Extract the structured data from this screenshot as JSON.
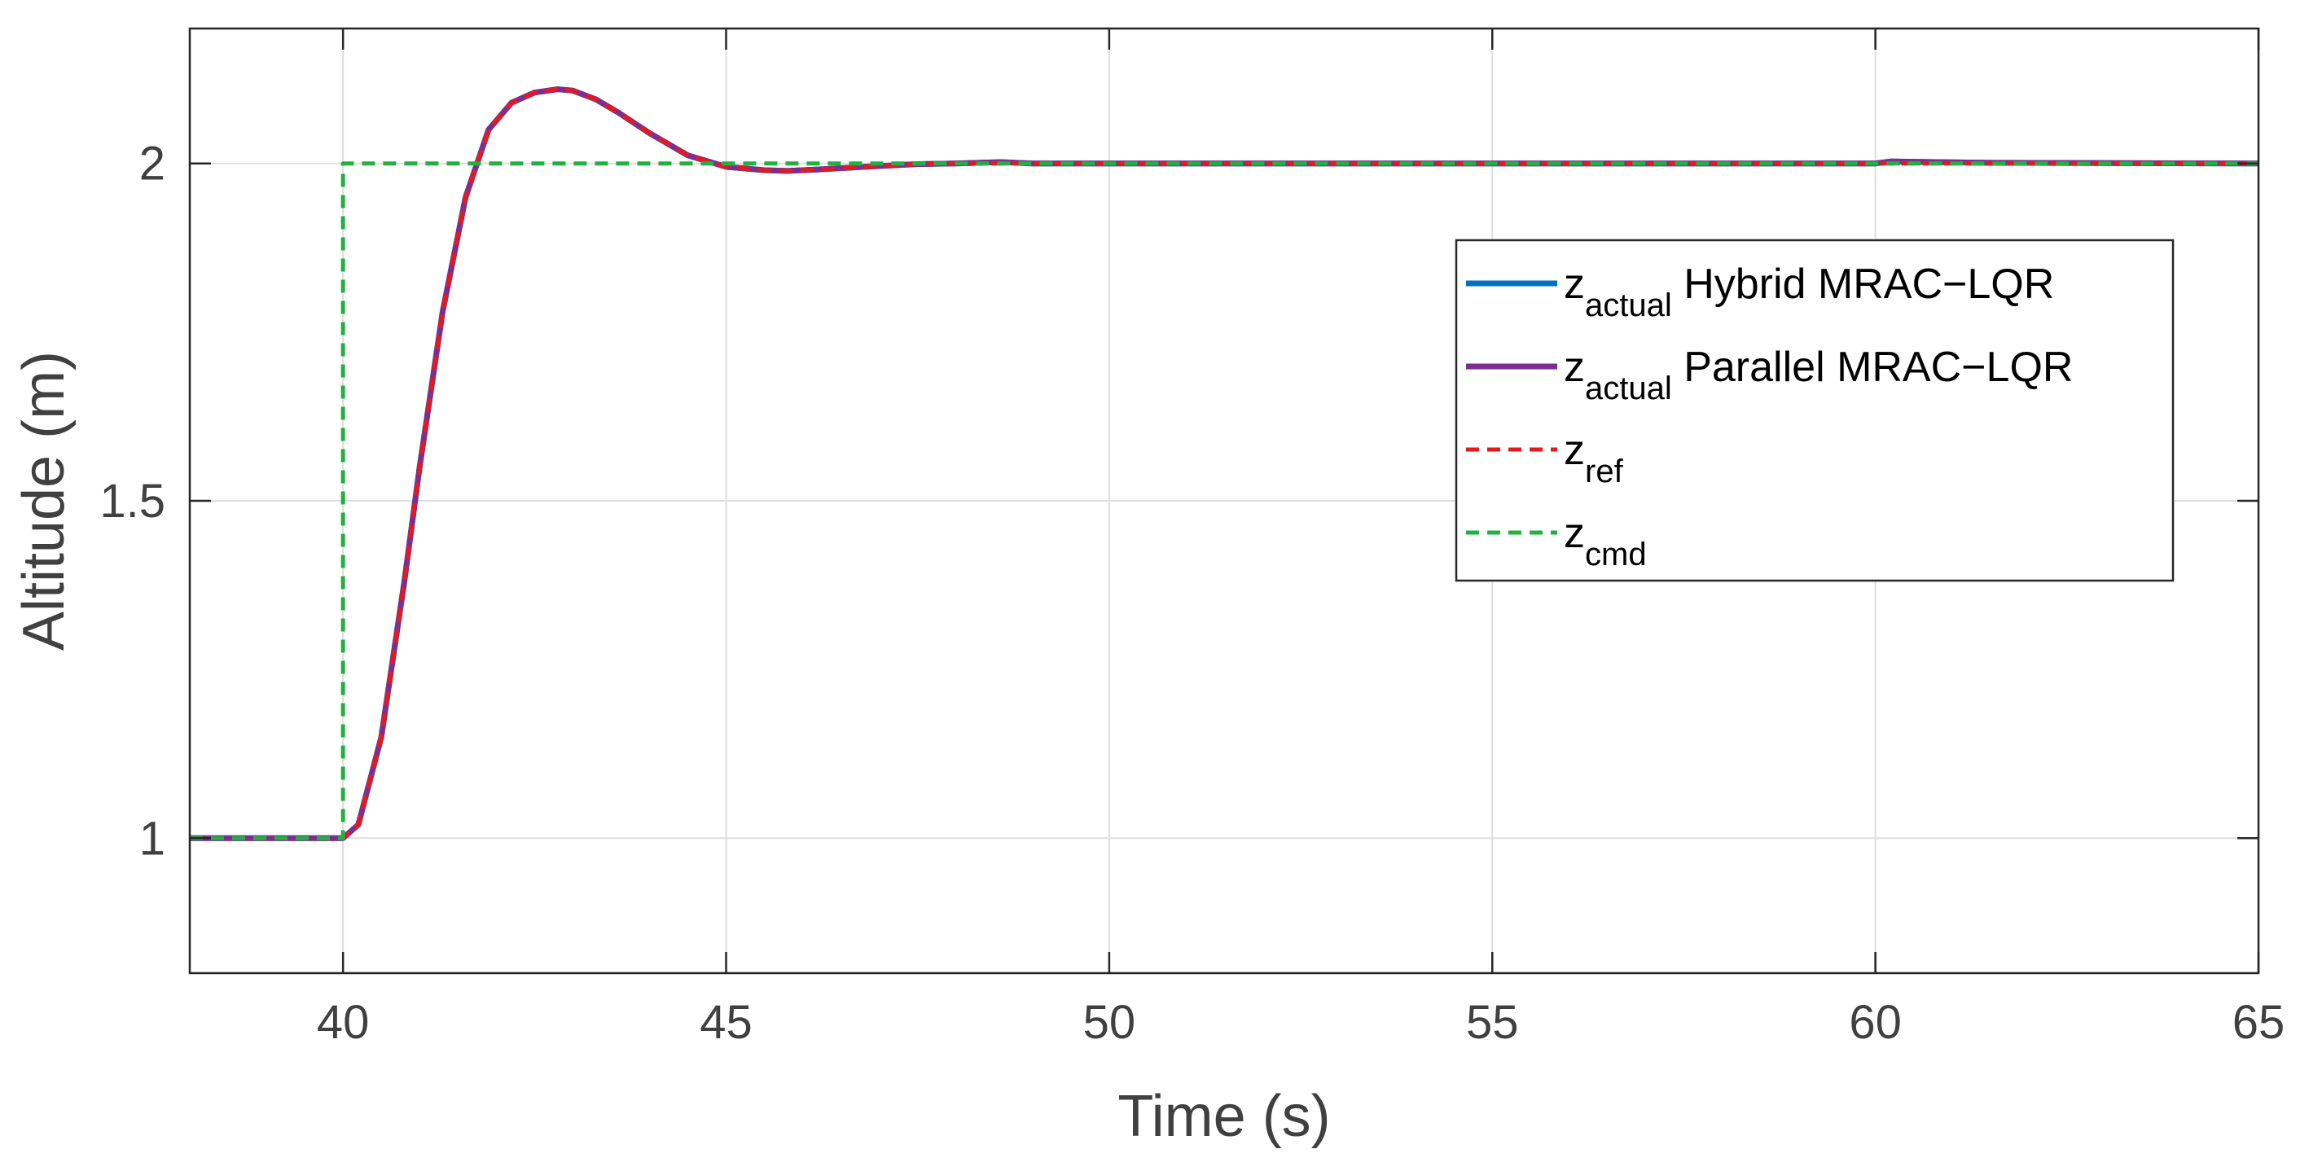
{
  "chart_data": {
    "type": "line",
    "xlabel": "Time (s)",
    "ylabel": "Altitude (m)",
    "xlim": [
      38,
      65
    ],
    "ylim": [
      0.8,
      2.2
    ],
    "xticks": [
      40,
      45,
      50,
      55,
      60,
      65
    ],
    "yticks": [
      1,
      1.5,
      2
    ],
    "xtick_labels": [
      "40",
      "45",
      "50",
      "55",
      "60",
      "65"
    ],
    "ytick_labels": [
      "1",
      "1.5",
      "2"
    ],
    "grid": true,
    "legend_position": "right",
    "legend": [
      {
        "base": "z",
        "sub": "actual",
        "text": "Hybrid MRAC−LQR"
      },
      {
        "base": "z",
        "sub": "actual",
        "text": "Parallel MRAC−LQR"
      },
      {
        "base": "z",
        "sub": "ref",
        "text": ""
      },
      {
        "base": "z",
        "sub": "cmd",
        "text": ""
      }
    ],
    "series": [
      {
        "name": "z_actual Hybrid MRAC-LQR",
        "color": "#0072BD",
        "style": "solid",
        "x": [
          38,
          40,
          40.2,
          40.5,
          40.8,
          41.0,
          41.3,
          41.6,
          41.9,
          42.2,
          42.5,
          42.8,
          43.0,
          43.3,
          43.6,
          44.0,
          44.5,
          45.0,
          45.5,
          45.8,
          46.2,
          46.8,
          47.5,
          48.0,
          48.6,
          49.0,
          50,
          55,
          60,
          60.2,
          61.5,
          65
        ],
        "y": [
          1,
          1,
          1.02,
          1.15,
          1.38,
          1.55,
          1.78,
          1.95,
          2.05,
          2.09,
          2.105,
          2.11,
          2.108,
          2.095,
          2.075,
          2.045,
          2.012,
          1.995,
          1.99,
          1.989,
          1.991,
          1.995,
          1.999,
          2.0,
          2.002,
          2.0,
          2.0,
          2.0,
          2.0,
          2.003,
          2.001,
          2.0
        ]
      },
      {
        "name": "z_actual Parallel MRAC-LQR",
        "color": "#7E2F8E",
        "style": "solid",
        "x": [
          38,
          40,
          40.2,
          40.5,
          40.8,
          41.0,
          41.3,
          41.6,
          41.9,
          42.2,
          42.5,
          42.8,
          43.0,
          43.3,
          43.6,
          44.0,
          44.5,
          45.0,
          45.5,
          45.8,
          46.2,
          46.8,
          47.5,
          48.0,
          48.6,
          49.0,
          50,
          55,
          60,
          60.2,
          61.5,
          65
        ],
        "y": [
          1,
          1,
          1.02,
          1.15,
          1.38,
          1.55,
          1.78,
          1.95,
          2.05,
          2.09,
          2.105,
          2.11,
          2.108,
          2.095,
          2.075,
          2.045,
          2.012,
          1.995,
          1.99,
          1.989,
          1.991,
          1.995,
          1.999,
          2.0,
          2.002,
          2.0,
          2.0,
          2.0,
          2.0,
          2.003,
          2.001,
          2.0
        ]
      },
      {
        "name": "z_ref",
        "color": "#E8191D",
        "style": "dashed",
        "x": [
          38,
          40,
          40.2,
          40.5,
          40.8,
          41.0,
          41.3,
          41.6,
          41.9,
          42.2,
          42.5,
          42.8,
          43.0,
          43.3,
          43.6,
          44.0,
          44.5,
          45.0,
          45.5,
          45.8,
          46.2,
          46.8,
          47.5,
          48.0,
          49.0,
          50,
          55,
          60,
          65
        ],
        "y": [
          1,
          1,
          1.02,
          1.15,
          1.38,
          1.55,
          1.78,
          1.95,
          2.05,
          2.09,
          2.105,
          2.11,
          2.108,
          2.095,
          2.075,
          2.045,
          2.012,
          1.995,
          1.99,
          1.989,
          1.991,
          1.995,
          1.999,
          2.0,
          2.0,
          2.0,
          2.0,
          2.0,
          2.0
        ]
      },
      {
        "name": "z_cmd",
        "color": "#22B040",
        "style": "dashed",
        "x": [
          38,
          40,
          40,
          65
        ],
        "y": [
          1,
          1,
          2,
          2
        ]
      }
    ]
  }
}
